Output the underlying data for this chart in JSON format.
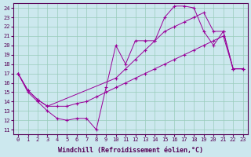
{
  "xlabel": "Windchill (Refroidissement éolien,°C)",
  "bg_color": "#cce8ee",
  "grid_color": "#99ccbb",
  "line_color": "#990099",
  "xlim": [
    -0.5,
    23.5
  ],
  "ylim": [
    10.5,
    24.5
  ],
  "xticks": [
    0,
    1,
    2,
    3,
    4,
    5,
    6,
    7,
    8,
    9,
    10,
    11,
    12,
    13,
    14,
    15,
    16,
    17,
    18,
    19,
    20,
    21,
    22,
    23
  ],
  "yticks": [
    11,
    12,
    13,
    14,
    15,
    16,
    17,
    18,
    19,
    20,
    21,
    22,
    23,
    24
  ],
  "series1_x": [
    0,
    1,
    2,
    3,
    4,
    5,
    6,
    7,
    8,
    9,
    10,
    11,
    12,
    13,
    14,
    15,
    16,
    17,
    18,
    19,
    20,
    21,
    22,
    23
  ],
  "series1_y": [
    17.0,
    15.0,
    14.0,
    13.0,
    12.2,
    12.0,
    12.2,
    12.2,
    11.0,
    15.5,
    20.0,
    18.0,
    20.5,
    20.5,
    20.5,
    23.0,
    24.2,
    24.2,
    24.0,
    21.5,
    20.0,
    21.5,
    17.5,
    17.5
  ],
  "series2_x": [
    0,
    1,
    2,
    3,
    4,
    5,
    6,
    7,
    8,
    9,
    10,
    11,
    12,
    13,
    14,
    15,
    16,
    17,
    18,
    19,
    20,
    21,
    22,
    23
  ],
  "series2_y": [
    17.0,
    15.2,
    14.2,
    13.5,
    13.5,
    13.5,
    13.8,
    14.0,
    14.5,
    15.0,
    15.5,
    16.0,
    16.5,
    17.0,
    17.5,
    18.0,
    18.5,
    19.0,
    19.5,
    20.0,
    20.5,
    21.0,
    17.5,
    17.5
  ],
  "series3_x": [
    0,
    1,
    2,
    3,
    10,
    11,
    12,
    13,
    14,
    15,
    16,
    17,
    18,
    19,
    20,
    21,
    22,
    23
  ],
  "series3_y": [
    17.0,
    15.2,
    14.2,
    13.5,
    16.5,
    17.5,
    18.5,
    19.5,
    20.5,
    21.5,
    22.0,
    22.5,
    23.0,
    23.5,
    21.5,
    21.5,
    17.5,
    17.5
  ],
  "tick_fontsize": 5,
  "xlabel_fontsize": 6
}
